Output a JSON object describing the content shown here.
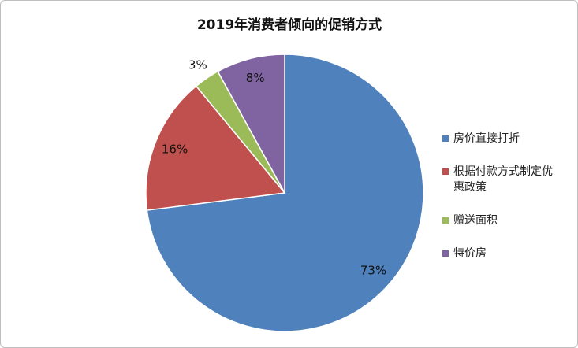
{
  "chart_data": {
    "type": "pie",
    "title": "2019年消费者倾向的促销方式",
    "categories": [
      "房价直接打折",
      "根据付款方式制定优惠政策",
      "赠送面积",
      "特价房"
    ],
    "values": [
      73,
      16,
      3,
      8
    ],
    "value_labels": [
      "73%",
      "16%",
      "3%",
      "8%"
    ],
    "colors": [
      "#4f81bd",
      "#c0504d",
      "#9bbb59",
      "#8064a2"
    ],
    "legend": "right"
  }
}
